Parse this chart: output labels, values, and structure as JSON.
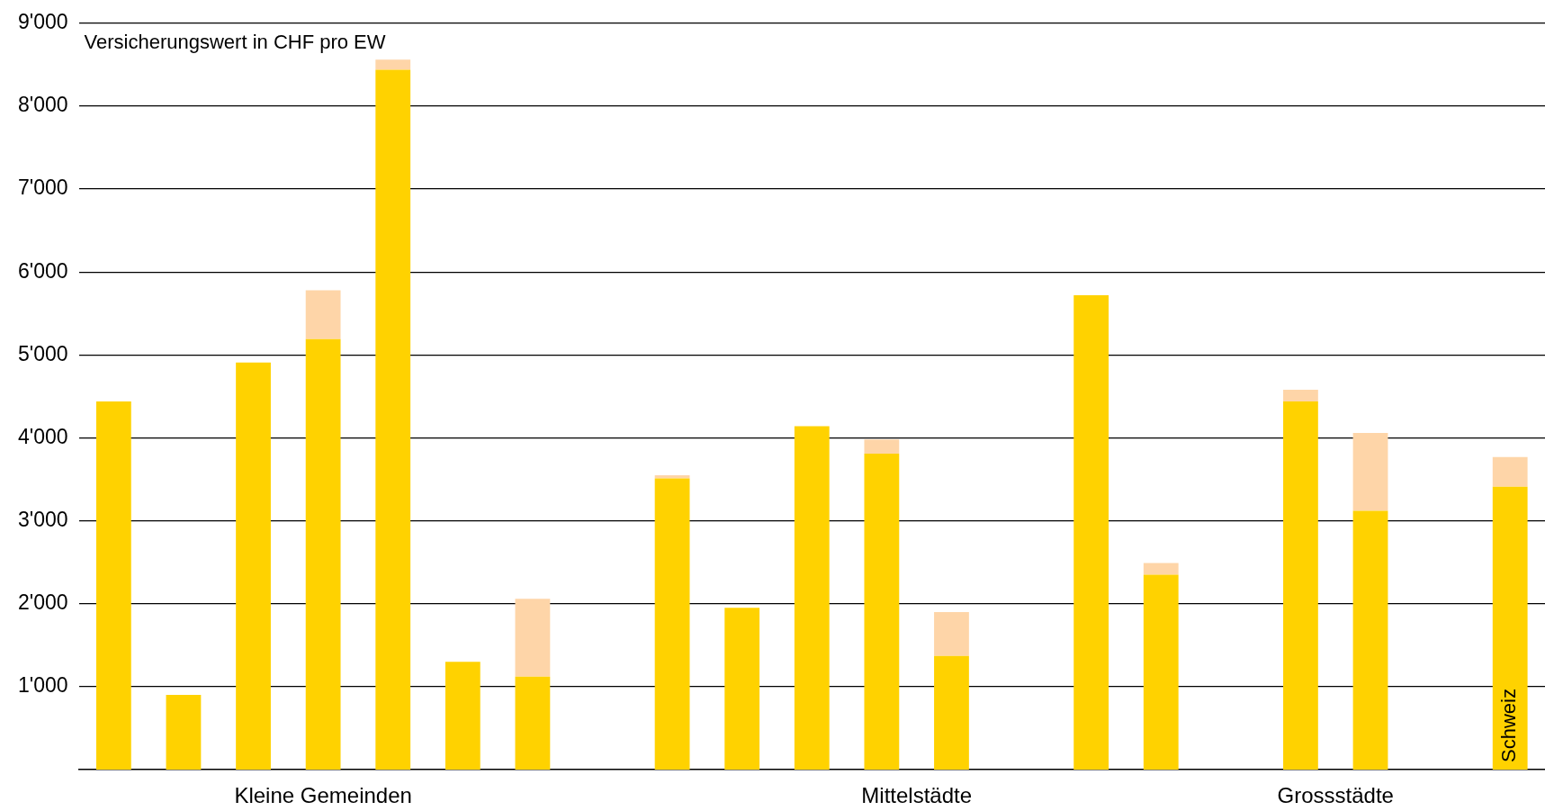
{
  "chart_data": {
    "type": "bar",
    "stacked": true,
    "ylabel": "Versicherungswert in CHF pro EW",
    "categories": [
      null,
      null,
      null,
      null,
      null,
      null,
      null,
      null,
      null,
      null,
      null,
      null,
      null,
      null,
      null,
      null,
      null,
      null,
      null,
      null,
      "Schweiz"
    ],
    "series": [
      {
        "color": "#ffd200",
        "values": [
          4440,
          900,
          4910,
          5190,
          8440,
          1300,
          1120,
          null,
          3510,
          1950,
          4140,
          3810,
          1370,
          null,
          5720,
          2350,
          null,
          4440,
          3120,
          null,
          3410
        ]
      },
      {
        "color": "#fed5a8",
        "values": [
          null,
          null,
          null,
          590,
          120,
          null,
          940,
          null,
          40,
          null,
          null,
          170,
          530,
          null,
          null,
          140,
          null,
          140,
          940,
          null,
          360
        ]
      }
    ],
    "ylim": [
      0,
      9000
    ],
    "yticks": [
      {
        "value": 1000,
        "label": "1'000"
      },
      {
        "value": 2000,
        "label": "2'000"
      },
      {
        "value": 3000,
        "label": "3'000"
      },
      {
        "value": 4000,
        "label": "4'000"
      },
      {
        "value": 5000,
        "label": "5'000"
      },
      {
        "value": 6000,
        "label": "6'000"
      },
      {
        "value": 7000,
        "label": "7'000"
      },
      {
        "value": 8000,
        "label": "8'000"
      },
      {
        "value": 9000,
        "label": "9'000"
      }
    ],
    "grid": "y",
    "legend": false,
    "annotations": [
      "Kleine Gemeinden",
      "Mittelstädte",
      "Grossstädte"
    ]
  }
}
